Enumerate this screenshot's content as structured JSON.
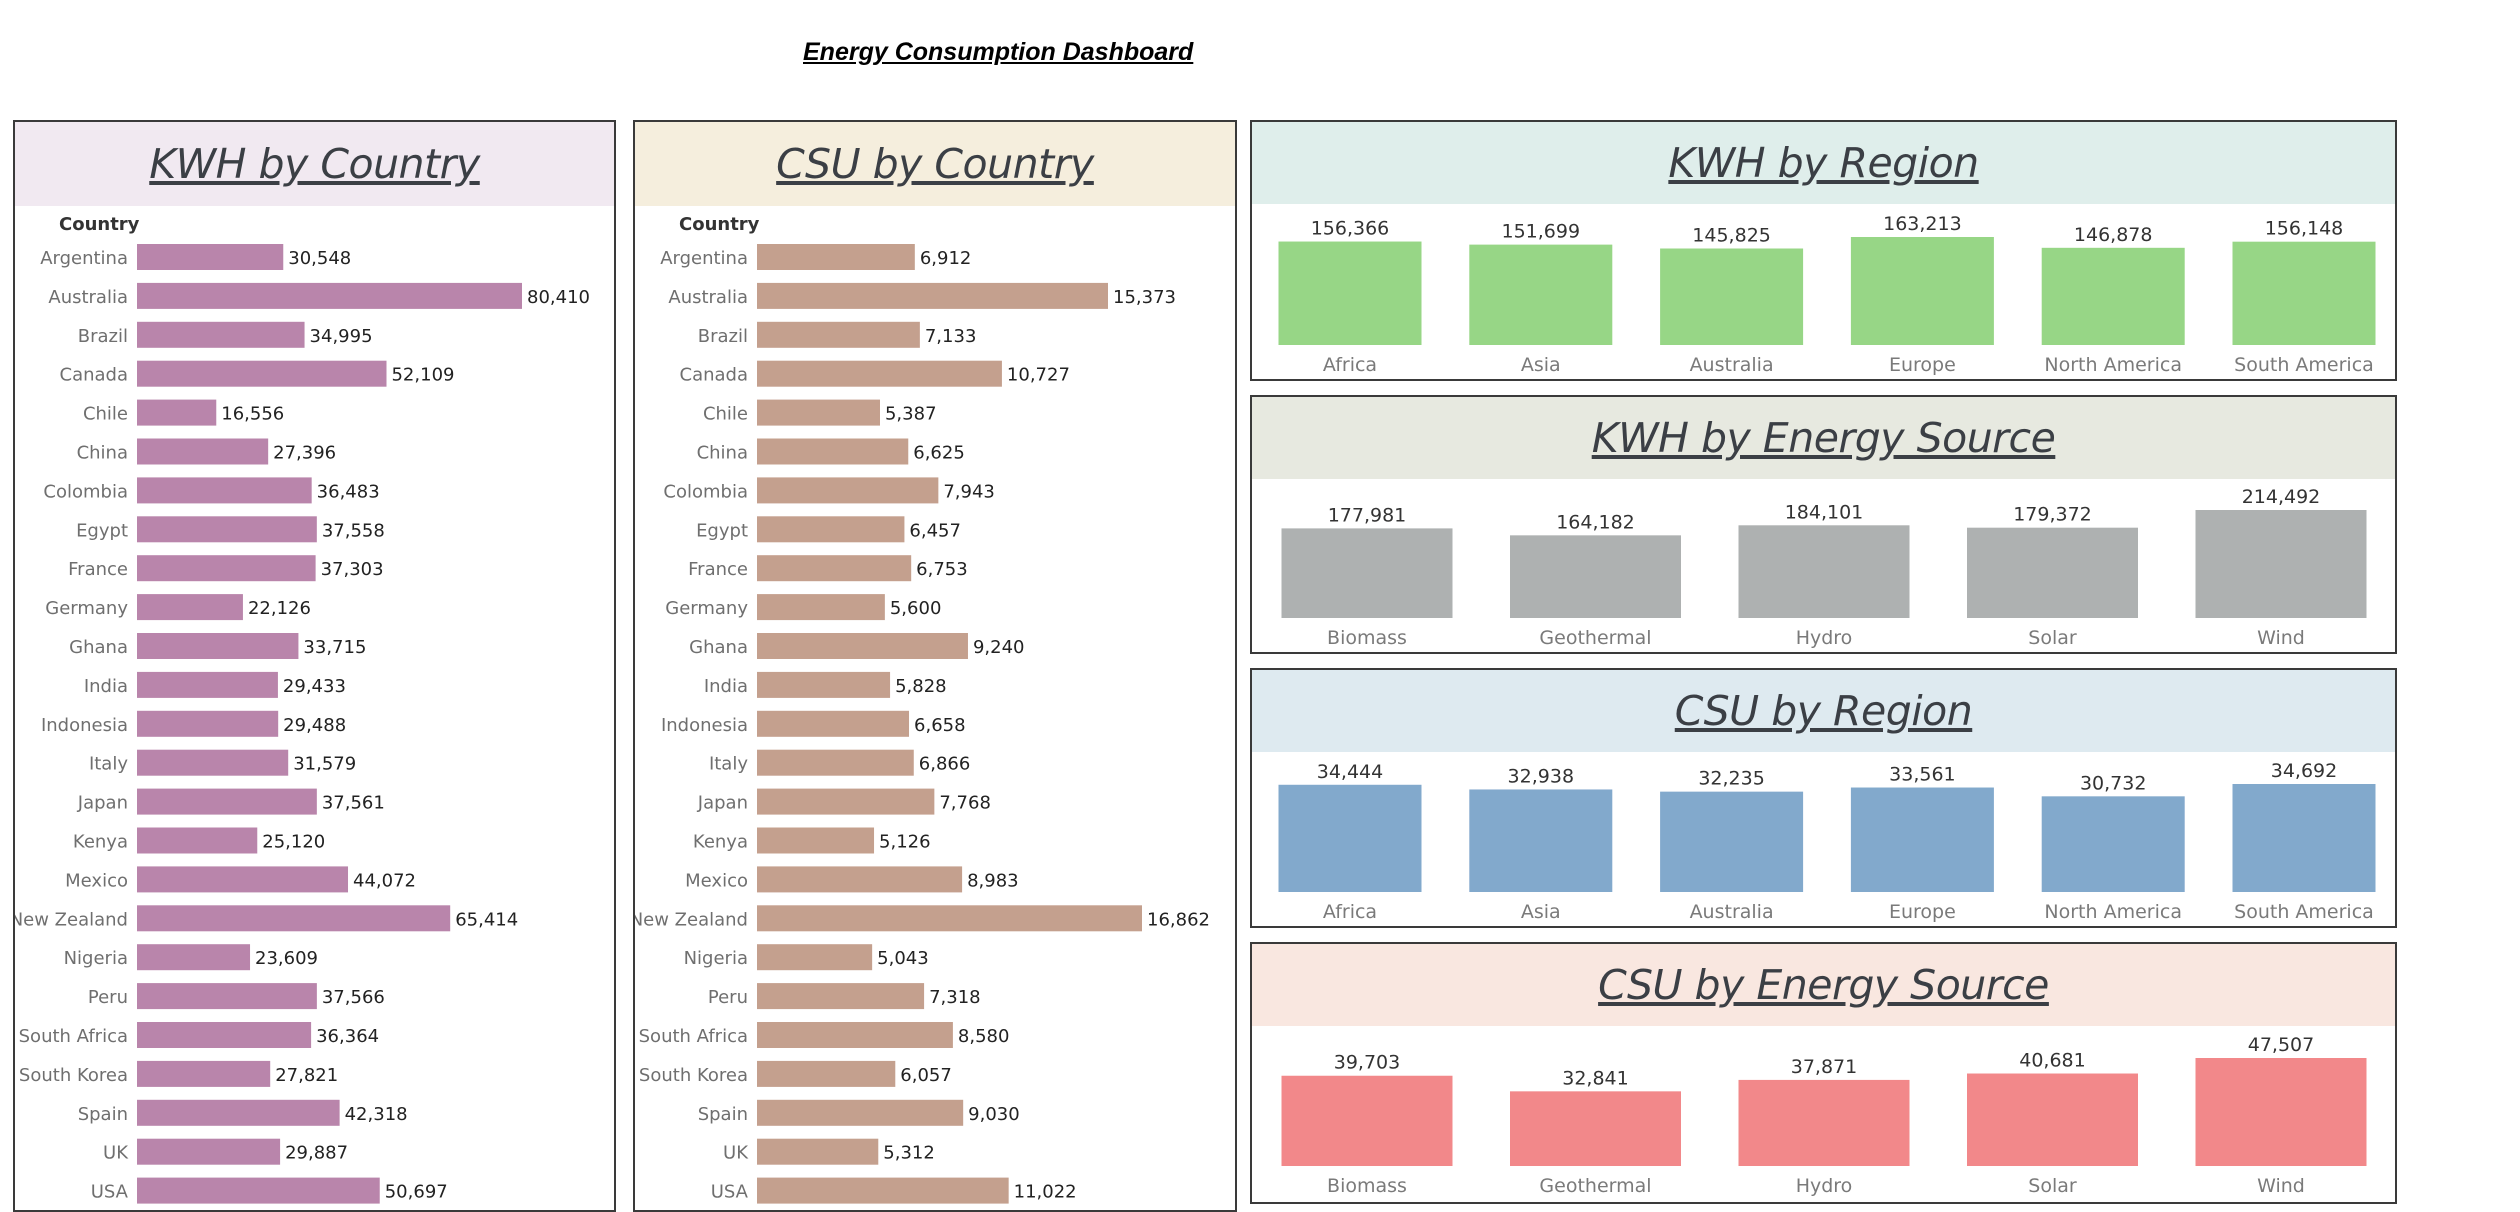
{
  "dashboard": {
    "title": "Energy Consumption Dashboard"
  },
  "colors": {
    "kwh_country_bar": "#b985ab",
    "kwh_country_head": "#f1e9f1",
    "csu_country_bar": "#c4a08e",
    "csu_country_head": "#f5eedd",
    "kwh_region_bar": "#97d686",
    "kwh_region_head": "#dfeeeb",
    "kwh_source_bar": "#aeb1b1",
    "kwh_source_head": "#e7e9e0",
    "csu_region_bar": "#82a9cc",
    "csu_region_head": "#deeaf0",
    "csu_source_bar": "#f2888a",
    "csu_source_head": "#f9e7e0"
  },
  "chart_data": [
    {
      "id": "kwh_country",
      "type": "bar",
      "orientation": "horizontal",
      "title": "KWH by Country",
      "category_header": "Country",
      "categories": [
        "Argentina",
        "Australia",
        "Brazil",
        "Canada",
        "Chile",
        "China",
        "Colombia",
        "Egypt",
        "France",
        "Germany",
        "Ghana",
        "India",
        "Indonesia",
        "Italy",
        "Japan",
        "Kenya",
        "Mexico",
        "New Zealand",
        "Nigeria",
        "Peru",
        "South Africa",
        "South Korea",
        "Spain",
        "UK",
        "USA"
      ],
      "values": [
        30548,
        80410,
        34995,
        52109,
        16556,
        27396,
        36483,
        37558,
        37303,
        22126,
        33715,
        29433,
        29488,
        31579,
        37561,
        25120,
        44072,
        65414,
        23609,
        37566,
        36364,
        27821,
        42318,
        29887,
        50697
      ],
      "labels": [
        "30,548",
        "80,410",
        "34,995",
        "52,109",
        "16,556",
        "27,396",
        "36,483",
        "37,558",
        "37,303",
        "22,126",
        "33,715",
        "29,433",
        "29,488",
        "31,579",
        "37,561",
        "25,120",
        "44,072",
        "65,414",
        "23,609",
        "37,566",
        "36,364",
        "27,821",
        "42,318",
        "29,887",
        "50,697"
      ]
    },
    {
      "id": "csu_country",
      "type": "bar",
      "orientation": "horizontal",
      "title": "CSU by Country",
      "category_header": "Country",
      "categories": [
        "Argentina",
        "Australia",
        "Brazil",
        "Canada",
        "Chile",
        "China",
        "Colombia",
        "Egypt",
        "France",
        "Germany",
        "Ghana",
        "India",
        "Indonesia",
        "Italy",
        "Japan",
        "Kenya",
        "Mexico",
        "New Zealand",
        "Nigeria",
        "Peru",
        "South Africa",
        "South Korea",
        "Spain",
        "UK",
        "USA"
      ],
      "values": [
        6912,
        15373,
        7133,
        10727,
        5387,
        6625,
        7943,
        6457,
        6753,
        5600,
        9240,
        5828,
        6658,
        6866,
        7768,
        5126,
        8983,
        16862,
        5043,
        7318,
        8580,
        6057,
        9030,
        5312,
        11022
      ],
      "labels": [
        "6,912",
        "15,373",
        "7,133",
        "10,727",
        "5,387",
        "6,625",
        "7,943",
        "6,457",
        "6,753",
        "5,600",
        "9,240",
        "5,828",
        "6,658",
        "6,866",
        "7,768",
        "5,126",
        "8,983",
        "16,862",
        "5,043",
        "7,318",
        "8,580",
        "6,057",
        "9,030",
        "5,312",
        "11,022"
      ]
    },
    {
      "id": "kwh_region",
      "type": "bar",
      "orientation": "vertical",
      "title": "KWH by Region",
      "categories": [
        "Africa",
        "Asia",
        "Australia",
        "Europe",
        "North America",
        "South America"
      ],
      "values": [
        156366,
        151699,
        145825,
        163213,
        146878,
        156148
      ],
      "labels": [
        "156,366",
        "151,699",
        "145,825",
        "163,213",
        "146,878",
        "156,148"
      ]
    },
    {
      "id": "kwh_source",
      "type": "bar",
      "orientation": "vertical",
      "title": "KWH by Energy Source",
      "categories": [
        "Biomass",
        "Geothermal",
        "Hydro",
        "Solar",
        "Wind"
      ],
      "values": [
        177981,
        164182,
        184101,
        179372,
        214492
      ],
      "labels": [
        "177,981",
        "164,182",
        "184,101",
        "179,372",
        "214,492"
      ]
    },
    {
      "id": "csu_region",
      "type": "bar",
      "orientation": "vertical",
      "title": "CSU by Region",
      "categories": [
        "Africa",
        "Asia",
        "Australia",
        "Europe",
        "North America",
        "South America"
      ],
      "values": [
        34444,
        32938,
        32235,
        33561,
        30732,
        34692
      ],
      "labels": [
        "34,444",
        "32,938",
        "32,235",
        "33,561",
        "30,732",
        "34,692"
      ]
    },
    {
      "id": "csu_source",
      "type": "bar",
      "orientation": "vertical",
      "title": "CSU by Energy Source",
      "categories": [
        "Biomass",
        "Geothermal",
        "Hydro",
        "Solar",
        "Wind"
      ],
      "values": [
        39703,
        32841,
        37871,
        40681,
        47507
      ],
      "labels": [
        "39,703",
        "32,841",
        "37,871",
        "40,681",
        "47,507"
      ]
    }
  ]
}
